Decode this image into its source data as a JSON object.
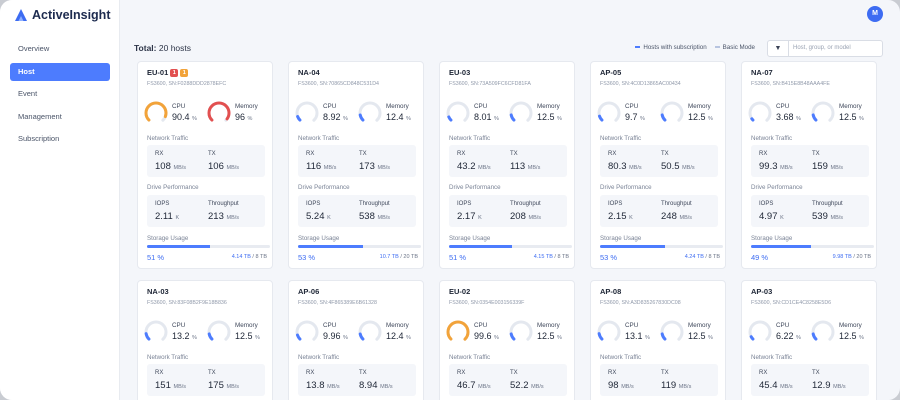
{
  "app": {
    "name": "ActiveInsight",
    "avatar_initial": "M"
  },
  "sidebar": {
    "items": [
      {
        "label": "Overview",
        "active": false
      },
      {
        "label": "Host",
        "active": true
      },
      {
        "label": "Event",
        "active": false
      },
      {
        "label": "Management",
        "active": false
      },
      {
        "label": "Subscription",
        "active": false
      }
    ]
  },
  "header": {
    "total_label": "Total:",
    "total_value": "20 hosts",
    "legend_subscription": "Hosts with subscription",
    "legend_basic": "Basic Mode",
    "filter_placeholder": "Host, group, or model"
  },
  "labels": {
    "cpu": "CPU",
    "memory": "Memory",
    "network": "Network Traffic",
    "rx": "RX",
    "tx": "TX",
    "drive": "Drive Performance",
    "iops": "IOPS",
    "throughput": "Throughput",
    "storage": "Storage Usage",
    "pct_unit": "%",
    "mbs_unit": "MB/s",
    "k_unit": "K"
  },
  "colors": {
    "accent": "#4d7cfe",
    "warning": "#f2a33a",
    "danger": "#e25050"
  },
  "hosts": [
    {
      "name": "EU-01",
      "badges": [
        "1",
        "1"
      ],
      "model": "FS3600, SN:F0288DDD2878EFC",
      "cpu": "90.4",
      "cpu_frac": 0.904,
      "cpu_color": "#f2a33a",
      "memory": "96",
      "mem_frac": 0.96,
      "mem_color": "#e25050",
      "rx": "108",
      "tx": "106",
      "iops": "2.11",
      "throughput": "213",
      "storage_pct": "51 %",
      "storage_frac": 0.51,
      "storage_used": "4.14 TB",
      "storage_total": "/ 8 TB"
    },
    {
      "name": "NA-04",
      "badges": [],
      "model": "FS3600, SN:70865CD848C531D4",
      "cpu": "8.92",
      "cpu_frac": 0.0892,
      "cpu_color": "#4d7cfe",
      "memory": "12.4",
      "mem_frac": 0.124,
      "mem_color": "#4d7cfe",
      "rx": "116",
      "tx": "173",
      "iops": "5.24",
      "throughput": "538",
      "storage_pct": "53 %",
      "storage_frac": 0.53,
      "storage_used": "10.7 TB",
      "storage_total": "/ 20 TB"
    },
    {
      "name": "EU-03",
      "badges": [],
      "model": "FS3600, SN:73A509FC6CFD81FA",
      "cpu": "8.01",
      "cpu_frac": 0.0801,
      "cpu_color": "#4d7cfe",
      "memory": "12.5",
      "mem_frac": 0.125,
      "mem_color": "#4d7cfe",
      "rx": "43.2",
      "tx": "113",
      "iops": "2.17",
      "throughput": "208",
      "storage_pct": "51 %",
      "storage_frac": 0.51,
      "storage_used": "4.15 TB",
      "storage_total": "/ 8 TB"
    },
    {
      "name": "AP-05",
      "badges": [],
      "model": "FS3600, SN:4C0D13865AC00434",
      "cpu": "9.7",
      "cpu_frac": 0.097,
      "cpu_color": "#4d7cfe",
      "memory": "12.5",
      "mem_frac": 0.125,
      "mem_color": "#4d7cfe",
      "rx": "80.3",
      "tx": "50.5",
      "iops": "2.15",
      "throughput": "248",
      "storage_pct": "53 %",
      "storage_frac": 0.53,
      "storage_used": "4.24 TB",
      "storage_total": "/ 8 TB"
    },
    {
      "name": "NA-07",
      "badges": [],
      "model": "FS3600, SN:B415E8B48AAA4FE",
      "cpu": "3.68",
      "cpu_frac": 0.0368,
      "cpu_color": "#4d7cfe",
      "memory": "12.5",
      "mem_frac": 0.125,
      "mem_color": "#4d7cfe",
      "rx": "99.3",
      "tx": "159",
      "iops": "4.97",
      "throughput": "539",
      "storage_pct": "49 %",
      "storage_frac": 0.49,
      "storage_used": "9.98 TB",
      "storage_total": "/ 20 TB"
    },
    {
      "name": "NA-03",
      "badges": [],
      "model": "FS3600, SN:83F08B2F9E18B836",
      "cpu": "13.2",
      "cpu_frac": 0.132,
      "cpu_color": "#4d7cfe",
      "memory": "12.5",
      "mem_frac": 0.125,
      "mem_color": "#4d7cfe",
      "rx": "151",
      "tx": "175"
    },
    {
      "name": "AP-06",
      "badges": [],
      "model": "FS3600, SN:4F865389E6B61328",
      "cpu": "9.96",
      "cpu_frac": 0.0996,
      "cpu_color": "#4d7cfe",
      "memory": "12.4",
      "mem_frac": 0.124,
      "mem_color": "#4d7cfe",
      "rx": "13.8",
      "tx": "8.94"
    },
    {
      "name": "EU-02",
      "badges": [],
      "model": "FS3600, SN:0354E003156339F",
      "cpu": "99.6",
      "cpu_frac": 0.996,
      "cpu_color": "#f2a33a",
      "memory": "12.5",
      "mem_frac": 0.125,
      "mem_color": "#4d7cfe",
      "rx": "46.7",
      "tx": "52.2"
    },
    {
      "name": "AP-08",
      "badges": [],
      "model": "FS3600, SN:A3D835267830DC08",
      "cpu": "13.1",
      "cpu_frac": 0.131,
      "cpu_color": "#4d7cfe",
      "memory": "12.5",
      "mem_frac": 0.125,
      "mem_color": "#4d7cfe",
      "rx": "98",
      "tx": "119"
    },
    {
      "name": "AP-03",
      "badges": [],
      "model": "FS3600, SN:CD1CE4C8258E5D6",
      "cpu": "6.22",
      "cpu_frac": 0.0622,
      "cpu_color": "#4d7cfe",
      "memory": "12.5",
      "mem_frac": 0.125,
      "mem_color": "#4d7cfe",
      "rx": "45.4",
      "tx": "12.9"
    }
  ]
}
